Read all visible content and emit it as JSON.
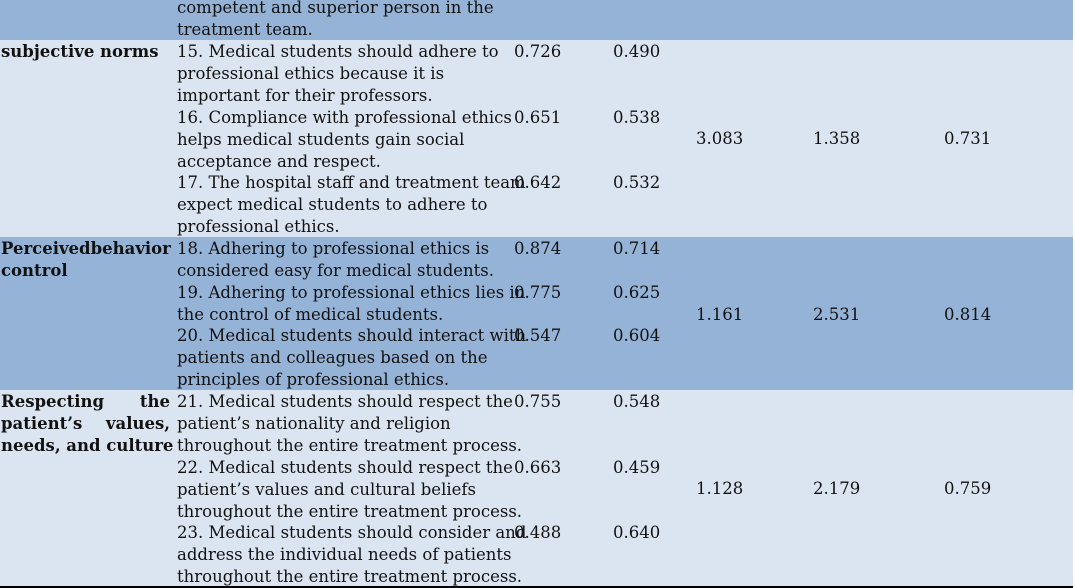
{
  "top_fragment": {
    "lines": [
      "competent and superior person in the",
      "treatment team."
    ]
  },
  "groups": [
    {
      "label_lines": [
        [
          "subjective norms"
        ]
      ],
      "items": [
        {
          "lines": [
            "15. Medical students should adhere to",
            "professional ethics because it is",
            "important for their professors."
          ],
          "v1": "0.726",
          "v2": "0.490"
        },
        {
          "lines": [
            "16. Compliance with professional ethics",
            "helps medical students gain social",
            "acceptance and respect."
          ],
          "v1": "0.651",
          "v2": "0.538"
        },
        {
          "lines": [
            "17. The hospital staff and treatment team",
            "expect medical students to adhere to",
            "professional ethics."
          ],
          "v1": "0.642",
          "v2": "0.532"
        }
      ],
      "stat1": "3.083",
      "stat2": "1.358",
      "stat3": "0.731"
    },
    {
      "label_lines": [
        [
          "Perceived",
          "behavior"
        ],
        [
          "control"
        ]
      ],
      "items": [
        {
          "lines": [
            "18. Adhering to professional ethics is",
            "considered easy for medical students."
          ],
          "v1": "0.874",
          "v2": "0.714"
        },
        {
          "lines": [
            "19. Adhering to professional ethics lies in",
            "the control of medical students."
          ],
          "v1": "0.775",
          "v2": "0.625"
        },
        {
          "lines": [
            "20. Medical students should interact with",
            "patients and colleagues based on the",
            "principles of professional ethics."
          ],
          "v1": "0.547",
          "v2": "0.604"
        }
      ],
      "stat1": "1.161",
      "stat2": "2.531",
      "stat3": "0.814"
    },
    {
      "label_lines": [
        [
          "Respecting",
          "the"
        ],
        [
          "patient’s",
          "values,"
        ],
        [
          "needs, and culture"
        ]
      ],
      "items": [
        {
          "lines": [
            "21. Medical students should respect the",
            "patient’s nationality and religion",
            "throughout the entire treatment process."
          ],
          "v1": "0.755",
          "v2": "0.548"
        },
        {
          "lines": [
            "22. Medical students should respect the",
            "patient’s values and cultural beliefs",
            "throughout the entire treatment process."
          ],
          "v1": "0.663",
          "v2": "0.459"
        },
        {
          "lines": [
            "23. Medical students should consider and",
            "address the individual needs of patients",
            "throughout the entire treatment process."
          ],
          "v1": "0.488",
          "v2": "0.640"
        }
      ],
      "stat1": "1.128",
      "stat2": "2.179",
      "stat3": "0.759"
    }
  ]
}
